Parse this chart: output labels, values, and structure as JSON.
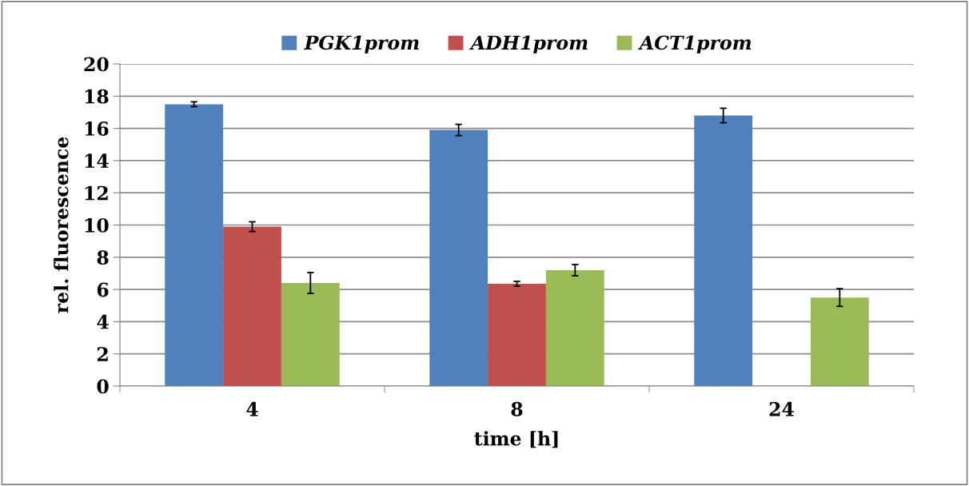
{
  "chart_data": {
    "type": "bar",
    "xlabel": "time [h]",
    "ylabel": "rel. fluorescence",
    "categories": [
      "4",
      "8",
      "24"
    ],
    "series": [
      {
        "name": "PGK1prom",
        "color": "#4f81bd",
        "values": [
          17.5,
          15.9,
          16.8
        ],
        "errors": [
          0.15,
          0.35,
          0.45
        ]
      },
      {
        "name": "ADH1prom",
        "color": "#c0504d",
        "values": [
          9.9,
          6.35,
          0
        ],
        "errors": [
          0.3,
          0.15,
          null
        ]
      },
      {
        "name": "ACT1prom",
        "color": "#9bbb59",
        "values": [
          6.4,
          7.2,
          5.5
        ],
        "errors": [
          0.65,
          0.35,
          0.55
        ]
      }
    ],
    "ylim": [
      0,
      20
    ],
    "yticks": [
      0,
      2,
      4,
      6,
      8,
      10,
      12,
      14,
      16,
      18,
      20
    ],
    "grid": "y",
    "legend": "top"
  }
}
